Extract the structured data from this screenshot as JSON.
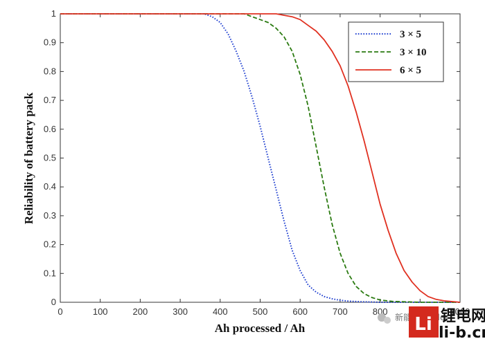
{
  "chart_data": {
    "type": "line",
    "title": "",
    "xlabel": "Ah processed / Ah",
    "ylabel": "Reliability of battery pack",
    "xlim": [
      0,
      1000
    ],
    "ylim": [
      0,
      1
    ],
    "xticks": [
      0,
      100,
      200,
      300,
      400,
      500,
      600,
      700,
      800,
      900,
      1000
    ],
    "yticks": [
      0,
      0.1,
      0.2,
      0.3,
      0.4,
      0.5,
      0.6,
      0.7,
      0.8,
      0.9,
      1
    ],
    "grid": false,
    "legend_position": "top-right",
    "series": [
      {
        "name": "3 × 5",
        "color": "#1f3fd0",
        "style": "dotted",
        "x": [
          0,
          360,
          380,
          400,
          420,
          440,
          460,
          480,
          500,
          520,
          540,
          560,
          580,
          600,
          620,
          640,
          660,
          680,
          700,
          720,
          750,
          800,
          1000
        ],
        "y": [
          1,
          1,
          0.99,
          0.97,
          0.93,
          0.87,
          0.8,
          0.71,
          0.61,
          0.5,
          0.39,
          0.28,
          0.18,
          0.11,
          0.06,
          0.035,
          0.02,
          0.012,
          0.007,
          0.004,
          0.002,
          0,
          0
        ]
      },
      {
        "name": "3 × 10",
        "color": "#2a7a10",
        "style": "dashed",
        "x": [
          0,
          460,
          480,
          500,
          520,
          540,
          560,
          580,
          600,
          620,
          640,
          660,
          680,
          700,
          720,
          740,
          760,
          780,
          800,
          830,
          900,
          1000
        ],
        "y": [
          1,
          1,
          0.99,
          0.98,
          0.97,
          0.95,
          0.92,
          0.87,
          0.79,
          0.68,
          0.54,
          0.4,
          0.27,
          0.17,
          0.1,
          0.055,
          0.03,
          0.016,
          0.008,
          0.003,
          0,
          0
        ]
      },
      {
        "name": "6 × 5",
        "color": "#e03020",
        "style": "solid",
        "x": [
          0,
          540,
          560,
          580,
          600,
          620,
          640,
          660,
          680,
          700,
          720,
          740,
          760,
          780,
          800,
          820,
          840,
          860,
          880,
          900,
          920,
          940,
          960,
          1000
        ],
        "y": [
          1,
          1,
          0.995,
          0.99,
          0.98,
          0.96,
          0.94,
          0.91,
          0.87,
          0.82,
          0.75,
          0.66,
          0.56,
          0.45,
          0.34,
          0.25,
          0.17,
          0.11,
          0.07,
          0.04,
          0.02,
          0.01,
          0.005,
          0
        ]
      }
    ]
  },
  "watermark": {
    "wechat_text": "新能源Leader",
    "logo_text": "锂电网",
    "site": "li-b.cn",
    "logo_mark": "Li"
  }
}
